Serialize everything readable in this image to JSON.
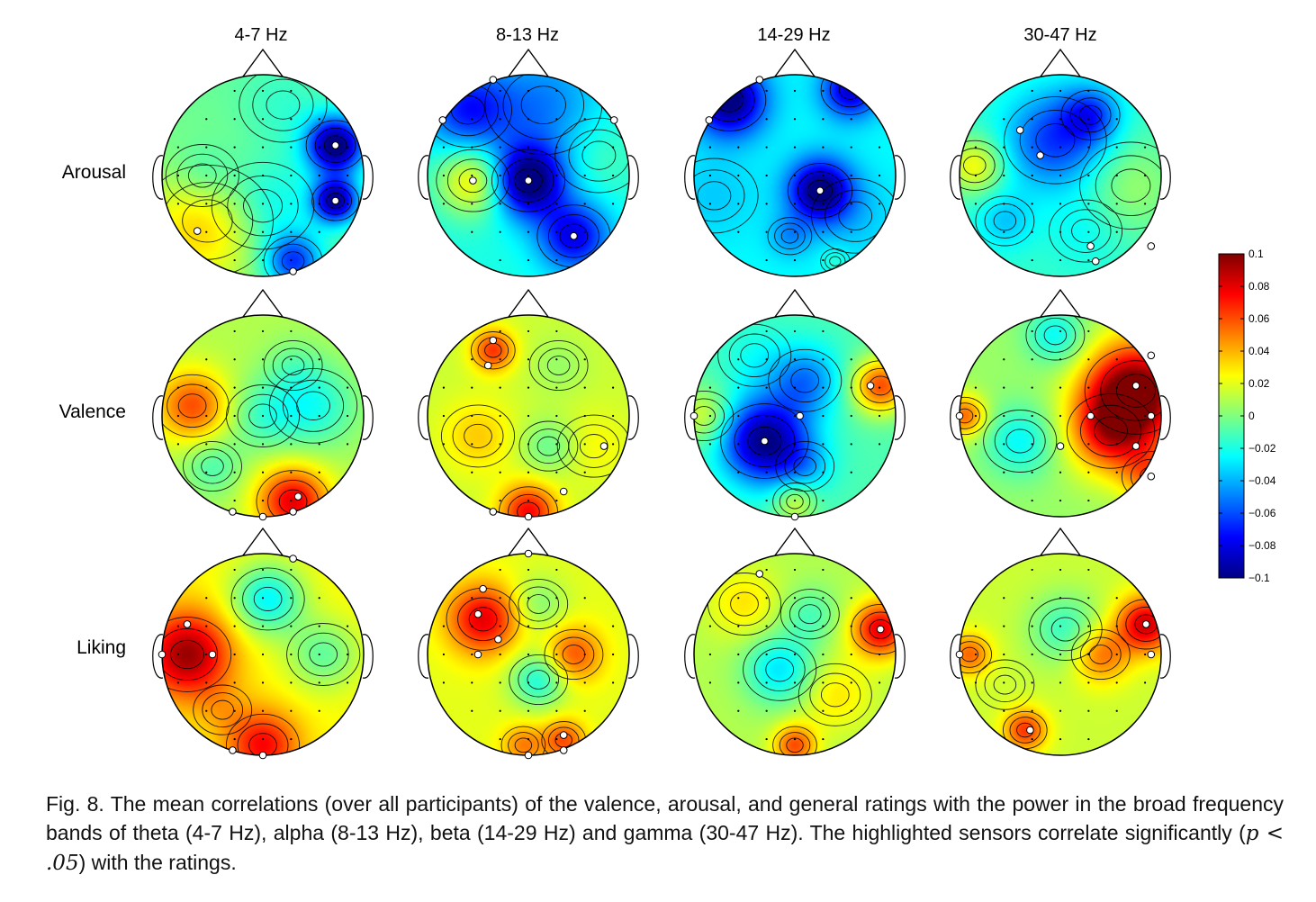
{
  "figure": {
    "column_titles": [
      "4-7 Hz",
      "8-13 Hz",
      "14-29 Hz",
      "30-47 Hz"
    ],
    "row_labels": [
      "Arousal",
      "Valence",
      "Liking"
    ],
    "colorbar": {
      "ticks": [
        "0.1",
        "0.08",
        "0.06",
        "0.04",
        "0.02",
        "0",
        "−0.02",
        "−0.04",
        "−0.06",
        "−0.08",
        "−0.1"
      ],
      "range": [
        -0.1,
        0.1
      ],
      "colormap": "jet"
    }
  },
  "caption": {
    "part1": "Fig. 8.  The mean correlations (over all participants) of the valence, arousal, and general ratings with the power in the broad frequency bands of theta (4-7 Hz), alpha (8-13 Hz), beta (14-29 Hz) and gamma (30-47 Hz). The highlighted sensors correlate significantly (",
    "math": "p < .05",
    "part2": ") with the ratings."
  },
  "maps": [
    [
      {
        "spots": [
          [
            -0.55,
            0.45,
            0.045,
            0.45
          ],
          [
            0.0,
            0.3,
            -0.03,
            0.35
          ],
          [
            0.72,
            0.25,
            -0.09,
            0.16
          ],
          [
            0.72,
            -0.3,
            -0.1,
            0.2
          ],
          [
            0.3,
            0.85,
            -0.06,
            0.2
          ],
          [
            -0.6,
            -0.0,
            -0.02,
            0.25
          ],
          [
            0.2,
            -0.7,
            -0.01,
            0.3
          ]
        ],
        "base": -0.005,
        "sig": [
          [
            0.3,
            0.95
          ],
          [
            0.72,
            0.25
          ],
          [
            0.72,
            -0.3
          ],
          [
            -0.65,
            0.55
          ]
        ]
      },
      {
        "spots": [
          [
            -0.55,
            0.05,
            0.05,
            0.25
          ],
          [
            0.0,
            0.05,
            -0.09,
            0.25
          ],
          [
            0.45,
            0.6,
            -0.06,
            0.25
          ],
          [
            -0.6,
            -0.65,
            -0.05,
            0.3
          ],
          [
            0.15,
            -0.7,
            -0.03,
            0.4
          ],
          [
            0.7,
            -0.2,
            0.01,
            0.3
          ]
        ],
        "base": -0.02,
        "sig": [
          [
            -0.55,
            0.05
          ],
          [
            0.0,
            0.05
          ],
          [
            0.45,
            0.6
          ],
          [
            -0.35,
            -0.95
          ],
          [
            -0.85,
            -0.55
          ],
          [
            0.85,
            -0.55
          ]
        ]
      },
      {
        "spots": [
          [
            -0.65,
            -0.75,
            -0.08,
            0.25
          ],
          [
            0.55,
            -0.85,
            -0.06,
            0.2
          ],
          [
            0.25,
            0.15,
            -0.08,
            0.22
          ],
          [
            -0.05,
            0.6,
            -0.02,
            0.15
          ],
          [
            0.4,
            0.85,
            0.01,
            0.1
          ],
          [
            -0.8,
            0.2,
            -0.01,
            0.3
          ],
          [
            0.6,
            0.4,
            -0.01,
            0.3
          ]
        ],
        "base": -0.025,
        "sig": [
          [
            -0.35,
            -0.95
          ],
          [
            -0.85,
            -0.55
          ],
          [
            0.25,
            0.15
          ]
        ]
      },
      {
        "spots": [
          [
            -0.55,
            0.45,
            -0.02,
            0.2
          ],
          [
            0.25,
            0.55,
            -0.01,
            0.25
          ],
          [
            -0.05,
            -0.35,
            -0.05,
            0.35
          ],
          [
            -0.85,
            -0.1,
            0.04,
            0.2
          ],
          [
            0.7,
            0.1,
            0.02,
            0.35
          ],
          [
            0.3,
            -0.6,
            -0.04,
            0.2
          ]
        ],
        "base": -0.015,
        "sig": [
          [
            -0.4,
            -0.45
          ],
          [
            -0.2,
            -0.2
          ],
          [
            0.35,
            0.85
          ],
          [
            0.3,
            0.7
          ],
          [
            0.9,
            0.7
          ]
        ]
      }
    ],
    [
      {
        "spots": [
          [
            -0.7,
            -0.1,
            0.05,
            0.25
          ],
          [
            0.3,
            0.85,
            0.07,
            0.25
          ],
          [
            0.0,
            0.0,
            -0.02,
            0.25
          ],
          [
            0.5,
            -0.1,
            -0.03,
            0.3
          ],
          [
            -0.5,
            0.5,
            -0.02,
            0.2
          ],
          [
            0.3,
            -0.5,
            -0.01,
            0.2
          ]
        ],
        "base": 0.01,
        "sig": [
          [
            0.3,
            0.95
          ],
          [
            -0.3,
            0.95
          ],
          [
            0.0,
            1.0
          ],
          [
            0.35,
            0.8
          ]
        ]
      },
      {
        "spots": [
          [
            -0.35,
            -0.65,
            0.05,
            0.15
          ],
          [
            0.0,
            0.95,
            0.06,
            0.2
          ],
          [
            0.2,
            0.3,
            -0.02,
            0.2
          ],
          [
            0.3,
            -0.5,
            -0.01,
            0.2
          ],
          [
            -0.5,
            0.2,
            0.02,
            0.25
          ],
          [
            0.65,
            0.3,
            0.01,
            0.25
          ]
        ],
        "base": 0.015,
        "sig": [
          [
            -0.35,
            -0.75
          ],
          [
            -0.4,
            -0.5
          ],
          [
            0.35,
            0.75
          ],
          [
            -0.35,
            0.95
          ],
          [
            0.0,
            1.0
          ],
          [
            0.75,
            0.3
          ]
        ]
      },
      {
        "spots": [
          [
            -0.3,
            0.25,
            -0.09,
            0.3
          ],
          [
            0.1,
            -0.35,
            -0.04,
            0.25
          ],
          [
            0.85,
            -0.3,
            0.07,
            0.2
          ],
          [
            -0.9,
            0.0,
            0.03,
            0.2
          ],
          [
            0.0,
            0.85,
            0.03,
            0.15
          ],
          [
            0.1,
            0.5,
            -0.02,
            0.2
          ],
          [
            -0.4,
            -0.6,
            -0.01,
            0.25
          ]
        ],
        "base": -0.01,
        "sig": [
          [
            -0.3,
            0.25
          ],
          [
            0.05,
            0.0
          ],
          [
            0.75,
            -0.3
          ],
          [
            0.0,
            1.0
          ],
          [
            -1.0,
            0.0
          ]
        ]
      },
      {
        "spots": [
          [
            0.75,
            -0.25,
            0.1,
            0.35
          ],
          [
            0.5,
            0.15,
            0.06,
            0.3
          ],
          [
            -0.05,
            -0.8,
            -0.03,
            0.2
          ],
          [
            -0.4,
            0.25,
            -0.03,
            0.25
          ],
          [
            -0.95,
            0.0,
            0.05,
            0.15
          ],
          [
            0.9,
            0.6,
            0.04,
            0.2
          ]
        ],
        "base": 0.005,
        "sig": [
          [
            0.75,
            -0.3
          ],
          [
            0.3,
            0.0
          ],
          [
            0.9,
            0.0
          ],
          [
            0.0,
            0.3
          ],
          [
            0.75,
            0.3
          ],
          [
            0.9,
            -0.6
          ],
          [
            0.9,
            0.6
          ],
          [
            -1.0,
            0.0
          ]
        ]
      }
    ],
    [
      {
        "spots": [
          [
            -0.75,
            0.0,
            0.07,
            0.3
          ],
          [
            0.05,
            -0.55,
            -0.05,
            0.25
          ],
          [
            0.6,
            0.0,
            -0.03,
            0.25
          ],
          [
            0.0,
            0.9,
            0.05,
            0.25
          ],
          [
            -0.4,
            0.55,
            0.01,
            0.2
          ]
        ],
        "base": 0.025,
        "sig": [
          [
            -0.75,
            -0.3
          ],
          [
            -0.5,
            0.0
          ],
          [
            -1.0,
            0.0
          ],
          [
            0.3,
            -0.95
          ],
          [
            0.0,
            1.0
          ],
          [
            -0.3,
            0.95
          ]
        ]
      },
      {
        "spots": [
          [
            -0.45,
            -0.35,
            0.06,
            0.25
          ],
          [
            0.1,
            0.25,
            -0.04,
            0.2
          ],
          [
            0.1,
            -0.5,
            -0.02,
            0.2
          ],
          [
            0.45,
            0.0,
            0.04,
            0.2
          ],
          [
            0.35,
            0.85,
            0.04,
            0.15
          ],
          [
            -0.05,
            0.9,
            0.03,
            0.15
          ]
        ],
        "base": 0.02,
        "sig": [
          [
            -0.45,
            -0.65
          ],
          [
            -0.5,
            -0.4
          ],
          [
            -0.3,
            -0.15
          ],
          [
            -0.5,
            0.0
          ],
          [
            0.35,
            0.8
          ],
          [
            0.35,
            0.95
          ],
          [
            0.0,
            1.0
          ],
          [
            0.0,
            -1.0
          ]
        ]
      },
      {
        "spots": [
          [
            -0.15,
            0.15,
            -0.04,
            0.25
          ],
          [
            0.15,
            -0.4,
            -0.02,
            0.2
          ],
          [
            0.85,
            -0.25,
            0.07,
            0.2
          ],
          [
            -0.5,
            -0.5,
            0.02,
            0.25
          ],
          [
            0.0,
            0.9,
            0.05,
            0.15
          ],
          [
            0.4,
            0.4,
            0.02,
            0.25
          ]
        ],
        "base": 0.01,
        "sig": [
          [
            0.85,
            -0.25
          ],
          [
            -0.35,
            -0.8
          ]
        ]
      },
      {
        "spots": [
          [
            0.85,
            -0.3,
            0.07,
            0.2
          ],
          [
            0.4,
            0.0,
            0.04,
            0.2
          ],
          [
            -0.35,
            0.75,
            0.05,
            0.15
          ],
          [
            0.05,
            -0.25,
            -0.03,
            0.25
          ],
          [
            -0.55,
            0.3,
            0.0,
            0.2
          ],
          [
            -0.9,
            0.0,
            0.04,
            0.15
          ]
        ],
        "base": 0.015,
        "sig": [
          [
            0.85,
            -0.3
          ],
          [
            0.9,
            0.0
          ],
          [
            -1.0,
            0.0
          ],
          [
            -0.3,
            0.75
          ]
        ]
      }
    ]
  ]
}
